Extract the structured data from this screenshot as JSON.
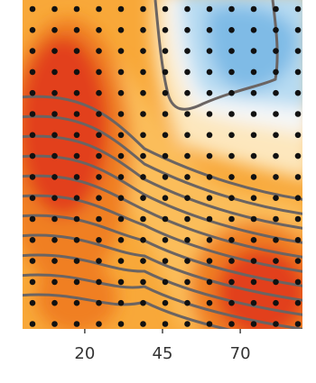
{
  "chart_data": {
    "type": "contour",
    "xlim": [
      0,
      90
    ],
    "xticks": [
      20,
      45,
      70
    ]
  }
}
